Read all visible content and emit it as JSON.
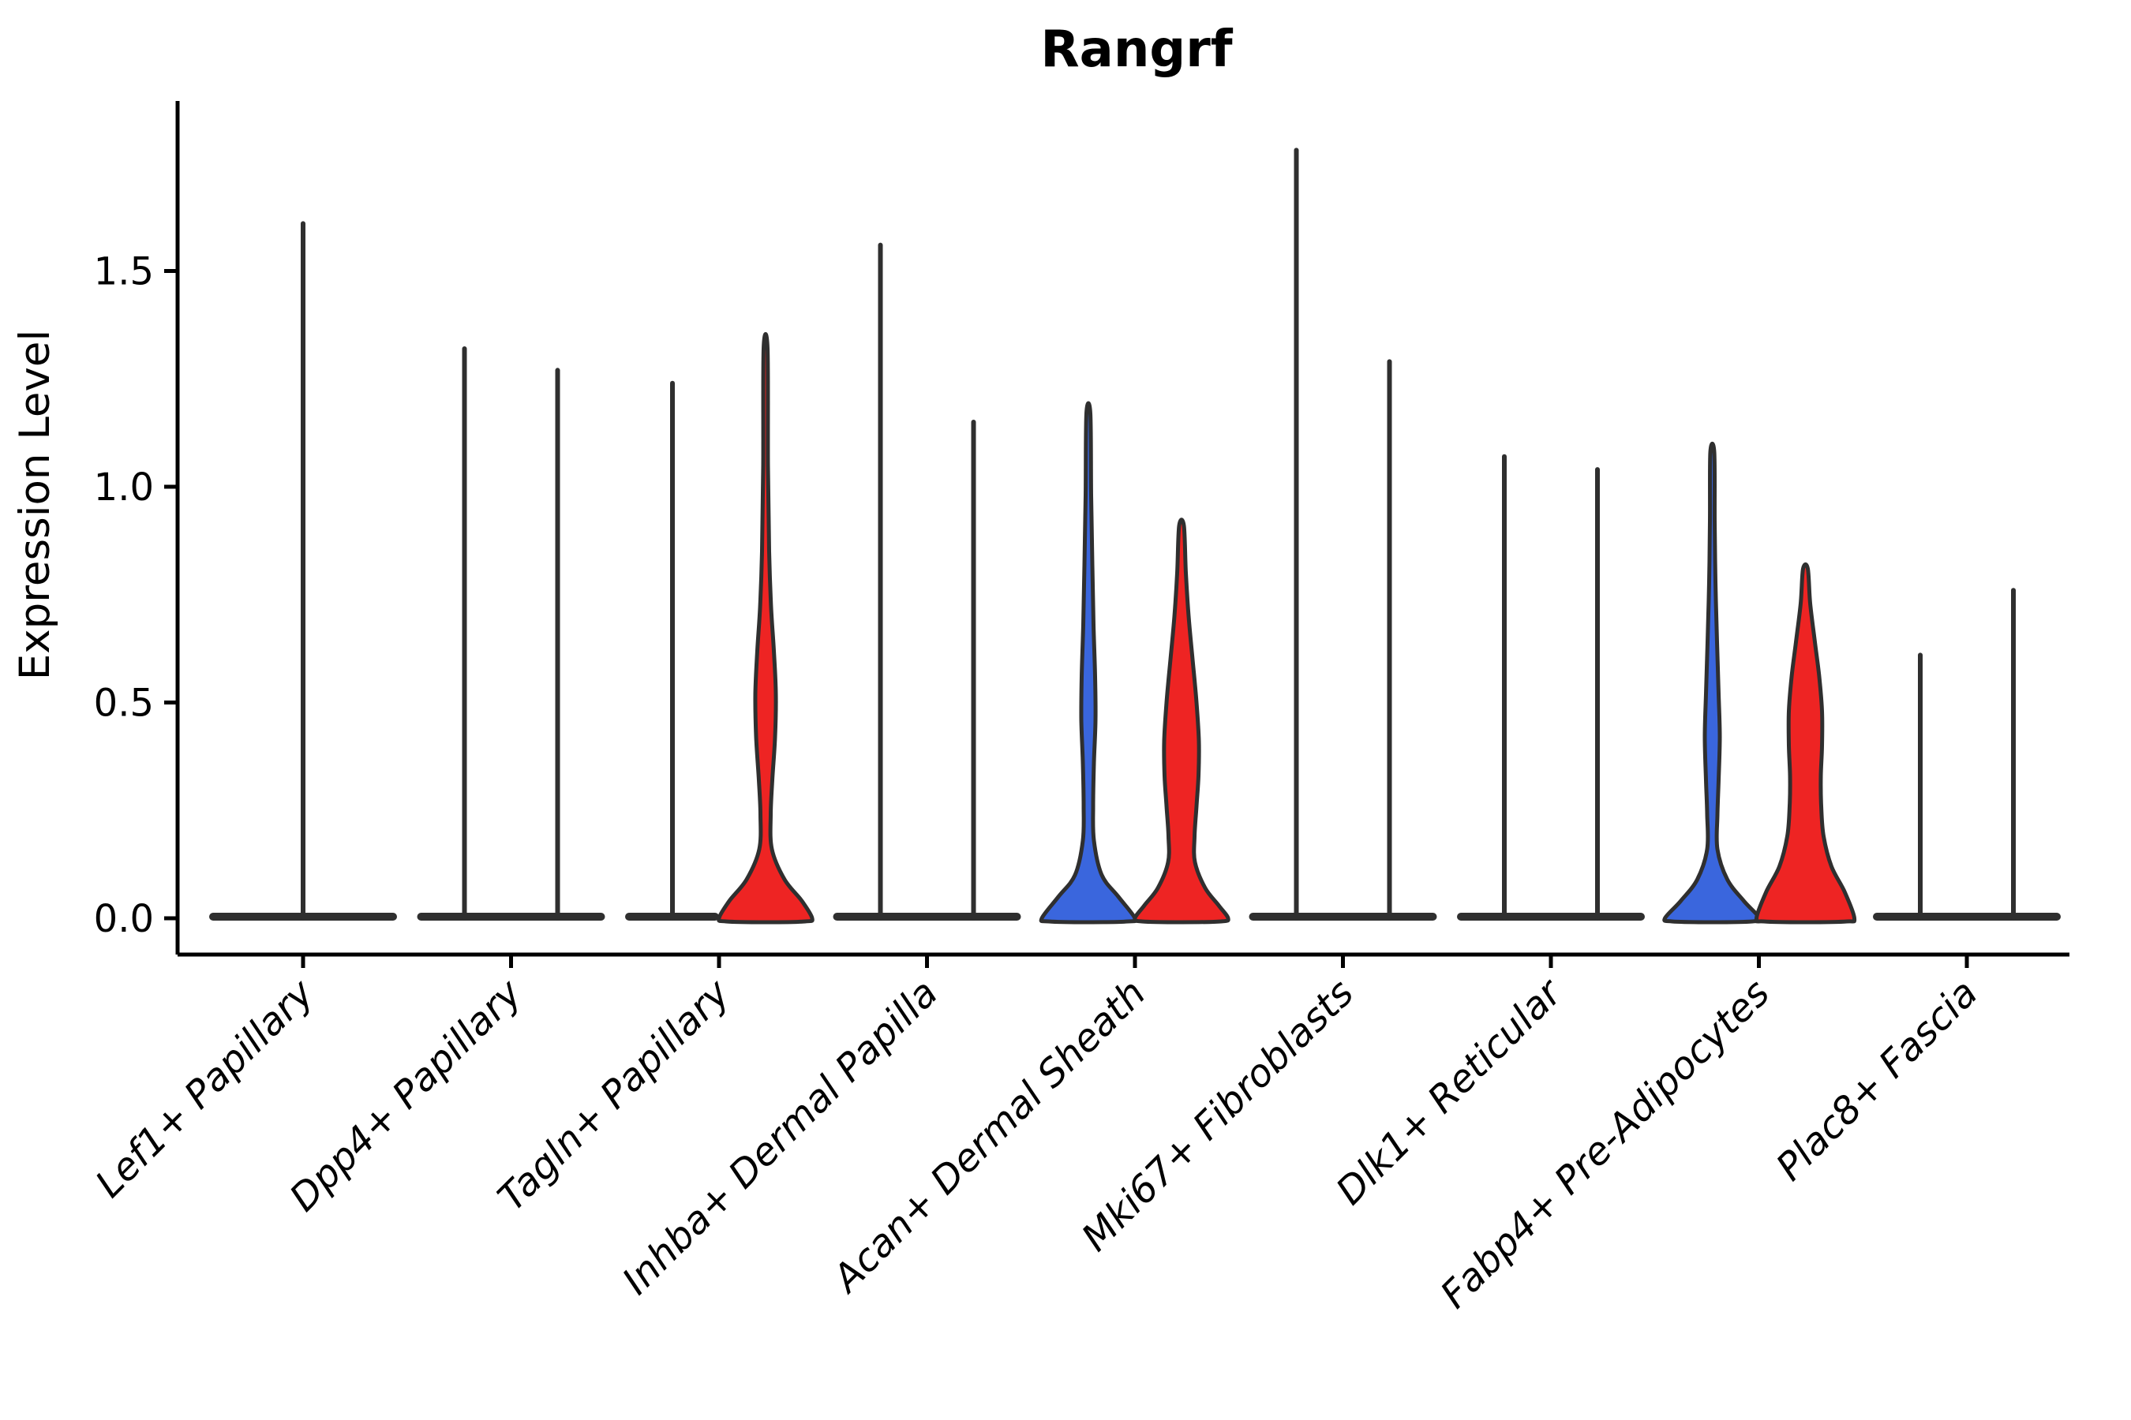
{
  "title": "Rangrf",
  "y_axis": {
    "label": "Expression Level",
    "tick_labels": [
      "0.0",
      "0.5",
      "1.0",
      "1.5"
    ]
  },
  "colors": {
    "blue": "#3A66DD",
    "red": "#EE2423",
    "outline": "#2F2F2F",
    "axis": "#000000",
    "background": "#FFFFFF"
  },
  "chart_data": {
    "type": "violin",
    "title": "Rangrf",
    "xlabel": "",
    "ylabel": "Expression Level",
    "ylim": [
      -0.09,
      1.89
    ],
    "yticks": [
      0.0,
      0.5,
      1.0,
      1.5
    ],
    "grid": false,
    "legend": "none",
    "categories": [
      "Lef1+ Papillary",
      "Dpp4+ Papillary",
      "Tagln+ Papillary",
      "Inhba+ Dermal Papilla",
      "Acan+ Dermal Sheath",
      "Mki67+ Fibroblasts",
      "Dlk1+ Reticular",
      "Fabp4+ Pre-Adipocytes",
      "Plac8+ Fascia"
    ],
    "series_colors": {
      "left": "#3A66DD",
      "right": "#EE2423"
    },
    "max_expression": {
      "left": [
        1.61,
        1.32,
        1.24,
        1.56,
        1.17,
        1.78,
        1.07,
        1.08,
        0.61
      ],
      "right": [
        null,
        1.27,
        1.32,
        1.15,
        0.91,
        1.29,
        1.04,
        0.81,
        0.76
      ]
    },
    "groups": [
      {
        "category": "Lef1+ Papillary",
        "violins": [
          {
            "side": "center",
            "style": "collapsed",
            "max": 1.61
          }
        ],
        "base_bars": [
          [
            -119,
            119
          ]
        ]
      },
      {
        "category": "Dpp4+ Papillary",
        "violins": [
          {
            "side": "left",
            "style": "collapsed",
            "max": 1.32
          },
          {
            "side": "right",
            "style": "collapsed",
            "max": 1.27
          }
        ],
        "base_bars": [
          [
            -119,
            119
          ]
        ]
      },
      {
        "category": "Tagln+ Papillary",
        "violins": [
          {
            "side": "left",
            "style": "collapsed",
            "max": 1.24
          },
          {
            "side": "right",
            "style": "filled",
            "fill": "red",
            "max": 1.32,
            "profile": [
              [
                1.32,
                2.5
              ],
              [
                1.05,
                3
              ],
              [
                0.85,
                4.5
              ],
              [
                0.72,
                7
              ],
              [
                0.62,
                10.5
              ],
              [
                0.52,
                13
              ],
              [
                0.42,
                12
              ],
              [
                0.32,
                8.5
              ],
              [
                0.24,
                6.5
              ],
              [
                0.16,
                8
              ],
              [
                0.09,
                24
              ],
              [
                0.04,
                46
              ],
              [
                0,
                59
              ]
            ]
          }
        ],
        "base_bars": [
          [
            -119,
            0
          ]
        ]
      },
      {
        "category": "Inhba+ Dermal Papilla",
        "violins": [
          {
            "side": "left",
            "style": "collapsed",
            "max": 1.56
          },
          {
            "side": "right",
            "style": "collapsed",
            "max": 1.15
          }
        ],
        "base_bars": [
          [
            -119,
            119
          ]
        ]
      },
      {
        "category": "Acan+ Dermal Sheath",
        "violins": [
          {
            "side": "left",
            "style": "filled",
            "fill": "blue",
            "max": 1.17,
            "profile": [
              [
                1.17,
                2.5
              ],
              [
                0.98,
                3.5
              ],
              [
                0.82,
                5
              ],
              [
                0.68,
                6.5
              ],
              [
                0.56,
                8.5
              ],
              [
                0.46,
                9
              ],
              [
                0.36,
                7
              ],
              [
                0.26,
                6
              ],
              [
                0.18,
                7
              ],
              [
                0.1,
                17
              ],
              [
                0.05,
                38
              ],
              [
                0,
                59
              ]
            ]
          },
          {
            "side": "right",
            "style": "filled",
            "fill": "red",
            "max": 0.91,
            "profile": [
              [
                0.91,
                3
              ],
              [
                0.8,
                5.5
              ],
              [
                0.7,
                9
              ],
              [
                0.6,
                14
              ],
              [
                0.5,
                19
              ],
              [
                0.41,
                22
              ],
              [
                0.33,
                21.5
              ],
              [
                0.26,
                19
              ],
              [
                0.19,
                16.5
              ],
              [
                0.13,
                17
              ],
              [
                0.07,
                30
              ],
              [
                0.03,
                47
              ],
              [
                0,
                59
              ]
            ]
          }
        ],
        "base_bars": []
      },
      {
        "category": "Mki67+ Fibroblasts",
        "violins": [
          {
            "side": "left",
            "style": "collapsed",
            "max": 1.78
          },
          {
            "side": "right",
            "style": "collapsed",
            "max": 1.29
          }
        ],
        "base_bars": [
          [
            -119,
            119
          ]
        ]
      },
      {
        "category": "Dlk1+ Reticular",
        "violins": [
          {
            "side": "left",
            "style": "collapsed",
            "max": 1.07
          },
          {
            "side": "right",
            "style": "collapsed",
            "max": 1.04
          }
        ],
        "base_bars": [
          [
            -119,
            119
          ]
        ]
      },
      {
        "category": "Fabp4+ Pre-Adipocytes",
        "violins": [
          {
            "side": "left",
            "style": "filled",
            "fill": "blue",
            "max": 1.08,
            "profile": [
              [
                1.08,
                2.5
              ],
              [
                0.92,
                3
              ],
              [
                0.78,
                4
              ],
              [
                0.64,
                6
              ],
              [
                0.52,
                8
              ],
              [
                0.42,
                9.5
              ],
              [
                0.32,
                8
              ],
              [
                0.24,
                6.5
              ],
              [
                0.16,
                6.5
              ],
              [
                0.09,
                19
              ],
              [
                0.04,
                40
              ],
              [
                0,
                60
              ]
            ]
          },
          {
            "side": "right",
            "style": "filled",
            "fill": "red",
            "max": 0.81,
            "profile": [
              [
                0.81,
                3
              ],
              [
                0.73,
                6
              ],
              [
                0.64,
                12
              ],
              [
                0.56,
                17.5
              ],
              [
                0.48,
                21
              ],
              [
                0.4,
                21
              ],
              [
                0.33,
                19.5
              ],
              [
                0.26,
                20
              ],
              [
                0.19,
                23
              ],
              [
                0.12,
                33
              ],
              [
                0.06,
                50
              ],
              [
                0,
                62
              ]
            ]
          }
        ],
        "base_bars": []
      },
      {
        "category": "Plac8+ Fascia",
        "violins": [
          {
            "side": "left",
            "style": "collapsed",
            "max": 0.61
          },
          {
            "side": "right",
            "style": "collapsed",
            "max": 0.76
          }
        ],
        "base_bars": [
          [
            -119,
            119
          ]
        ]
      }
    ]
  }
}
